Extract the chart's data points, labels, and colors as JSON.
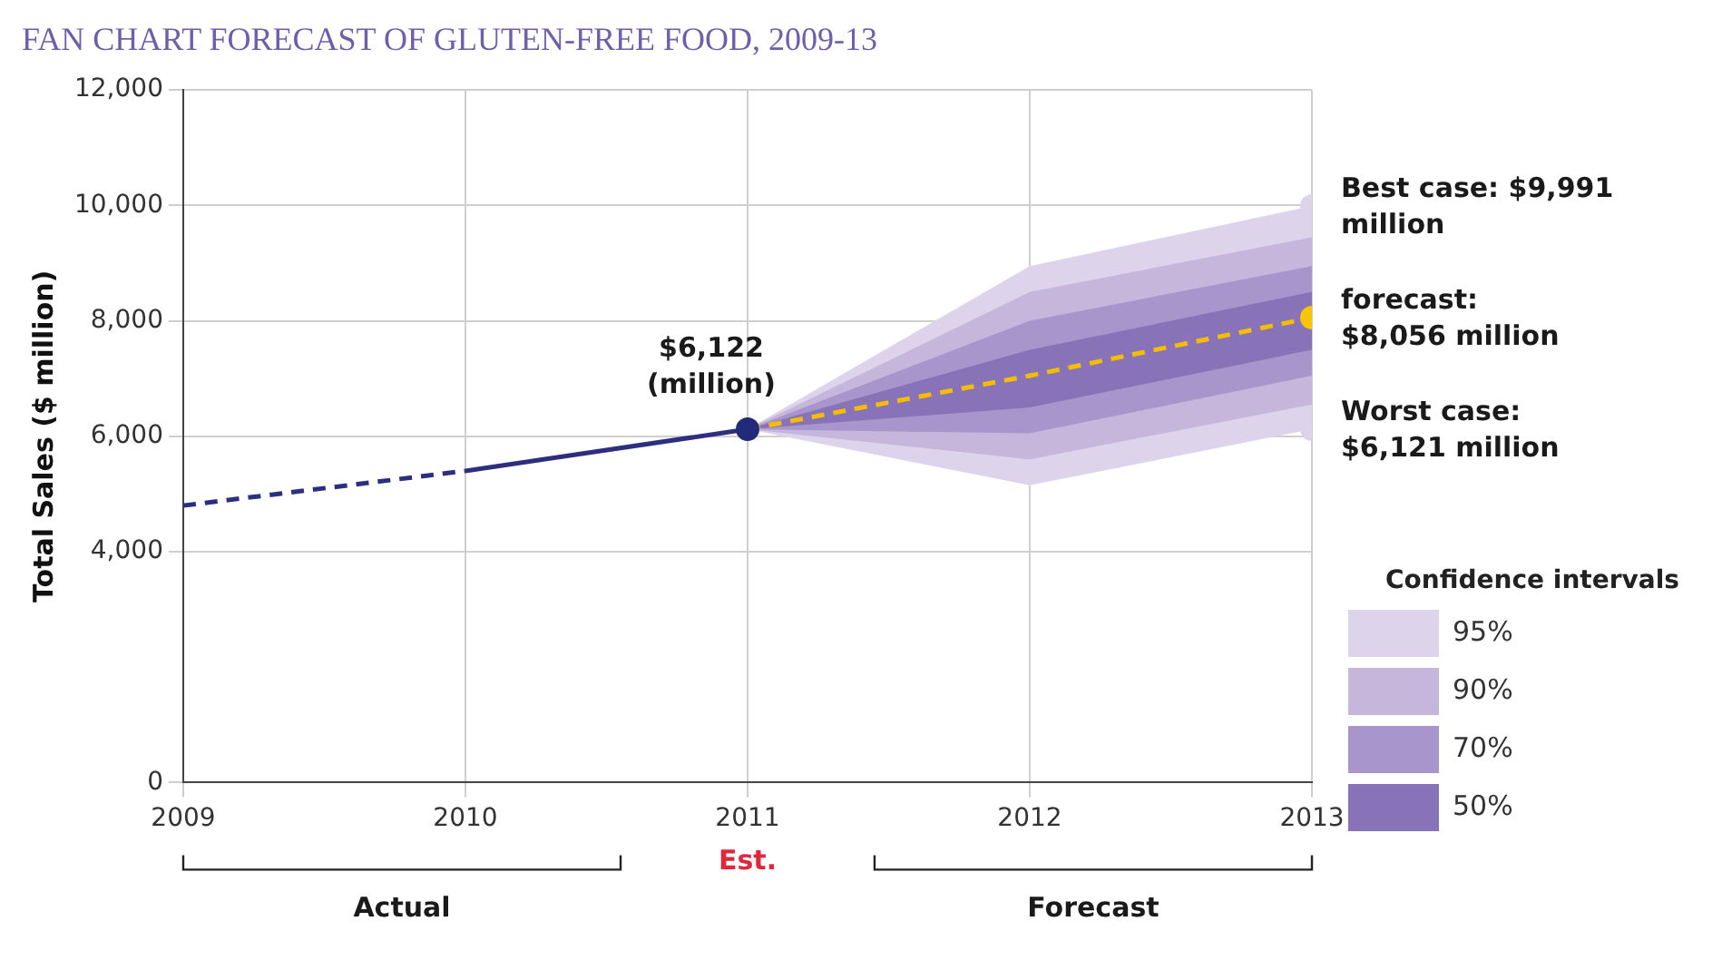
{
  "chart_data": {
    "type": "line",
    "title": "FAN CHART FORECAST OF GLUTEN-FREE FOOD, 2009-13",
    "ylabel": "Total Sales ($ million)",
    "legend_title": "Confidence intervals",
    "legend": "bottom right",
    "grid": true,
    "xlim": [
      2009,
      2013
    ],
    "xticks": [
      2009,
      2010,
      2011,
      2012,
      2013
    ],
    "ylim": [
      0,
      12000
    ],
    "yticks": [
      {
        "value": 0,
        "label": "0"
      },
      {
        "value": 4000,
        "label": "4,000"
      },
      {
        "value": 6000,
        "label": "6,000"
      },
      {
        "value": 8000,
        "label": "8,000"
      },
      {
        "value": 10000,
        "label": "10,000"
      },
      {
        "value": 12000,
        "label": "12,000"
      }
    ],
    "series": [
      {
        "name": "95%",
        "type": "line",
        "color": "#ddd3ea",
        "x": [
          2011,
          2012,
          2013
        ],
        "values": [
          null,
          null,
          null
        ],
        "lower": [
          6122,
          5150,
          6121
        ],
        "upper": [
          6122,
          8950,
          9991
        ]
      },
      {
        "name": "90%",
        "type": "line",
        "color": "#c6b6dc",
        "x": [
          2011,
          2012,
          2013
        ],
        "values": [
          null,
          null,
          null
        ],
        "lower": [
          6122,
          5600,
          6550
        ],
        "upper": [
          6122,
          8500,
          9450
        ]
      },
      {
        "name": "70%",
        "type": "line",
        "color": "#a895cc",
        "x": [
          2011,
          2012,
          2013
        ],
        "values": [
          null,
          null,
          null
        ],
        "lower": [
          6122,
          6050,
          7050
        ],
        "upper": [
          6122,
          8000,
          8950
        ]
      },
      {
        "name": "50%",
        "type": "line",
        "color": "#8873b8",
        "x": [
          2011,
          2012,
          2013
        ],
        "values": [
          null,
          null,
          null
        ],
        "lower": [
          6122,
          6500,
          7500
        ],
        "upper": [
          6122,
          7500,
          8500
        ]
      },
      {
        "type": "line",
        "color": "#2e2e7e",
        "x": [
          2009,
          2010
        ],
        "values": [
          4800,
          5400
        ],
        "line_style": "dashed",
        "marker": "none"
      },
      {
        "type": "line",
        "color": "#2e2e7e",
        "x": [
          2010,
          2011
        ],
        "values": [
          5400,
          6122
        ],
        "line_style": "solid",
        "marker": "none"
      },
      {
        "type": "line",
        "color": "#f5bd00",
        "x": [
          2011,
          2012,
          2013
        ],
        "values": [
          6122,
          7050,
          8056
        ],
        "line_style": "dashed",
        "marker": "none"
      },
      {
        "type": "scatter",
        "color": "#232a7a",
        "x": [
          2011
        ],
        "values": [
          6122
        ],
        "marker": "circle"
      },
      {
        "type": "scatter",
        "color": "#f7c600",
        "x": [
          2013
        ],
        "values": [
          8056
        ],
        "marker": "circle"
      },
      {
        "type": "scatter",
        "color": "#ddd3ea",
        "x": [
          2013,
          2013
        ],
        "values": [
          9991,
          6121
        ],
        "marker": "circle"
      }
    ],
    "annotations": [
      "$6,122\n(million)",
      "forecast:\n$8,056 million",
      "Best case: $9,991\nmillion",
      "Worst case:\n$6,121 million",
      "Est.",
      "Actual",
      "Forecast"
    ]
  }
}
